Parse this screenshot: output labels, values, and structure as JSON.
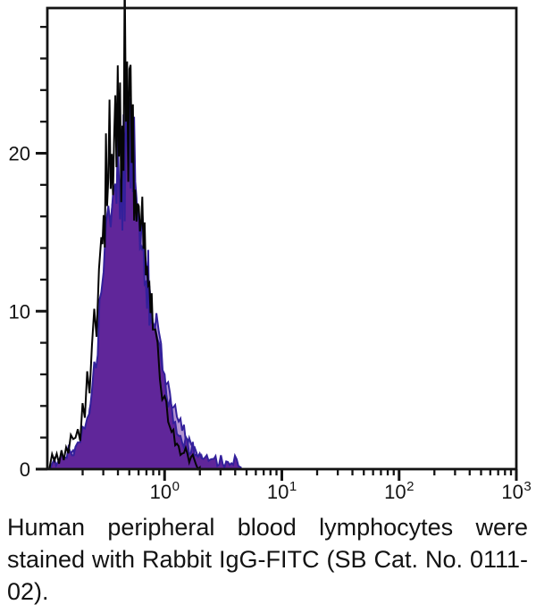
{
  "caption": {
    "text": "Human peripheral blood lymphocytes were stained with Rabbit IgG-FITC (SB Cat. No. 0111-02)."
  },
  "chart_data": {
    "type": "area",
    "subtype": "flow-cytometry-histogram-overlay",
    "title": "",
    "xlabel": "",
    "ylabel": "",
    "grid": false,
    "legend": "none",
    "axis_color": "#141414",
    "x_axis": {
      "scale": "log10",
      "min_exponent": -1,
      "max_exponent": 3,
      "label_base": "10",
      "labeled_exponents": [
        0,
        1,
        2,
        3
      ],
      "minor_ticks_per_decade": [
        2,
        3,
        4,
        5,
        6,
        7,
        8,
        9
      ]
    },
    "y_axis": {
      "min": 0,
      "max": 29.2,
      "major_ticks": [
        0,
        10,
        20
      ],
      "major_tick_labels": [
        "0",
        "10",
        "20"
      ],
      "minor_tick_step": 2,
      "minor_tick_max": 28
    },
    "series": [
      {
        "name": "histogram-light-purple",
        "style": "filled",
        "fill": "#b596d2",
        "stroke": "#33209b",
        "stroke_width": 2,
        "peak_value": 20,
        "points": [
          [
            -0.93,
            0.2
          ],
          [
            -0.88,
            0.6
          ],
          [
            -0.83,
            0.4
          ],
          [
            -0.78,
            1.0
          ],
          [
            -0.73,
            0.8
          ],
          [
            -0.68,
            1.5
          ],
          [
            -0.62,
            4.2
          ],
          [
            -0.58,
            6.5
          ],
          [
            -0.54,
            9.5
          ],
          [
            -0.5,
            12.5
          ],
          [
            -0.46,
            15.0
          ],
          [
            -0.43,
            16.5
          ],
          [
            -0.4,
            17.5
          ],
          [
            -0.37,
            18.5
          ],
          [
            -0.34,
            19.5
          ],
          [
            -0.31,
            20.0
          ],
          [
            -0.28,
            19.0
          ],
          [
            -0.25,
            17.5
          ],
          [
            -0.22,
            16.5
          ],
          [
            -0.19,
            14.5
          ],
          [
            -0.16,
            13.0
          ],
          [
            -0.13,
            11.5
          ],
          [
            -0.11,
            10.5
          ],
          [
            -0.09,
            9.5
          ],
          [
            -0.07,
            8.6
          ],
          [
            -0.05,
            7.8
          ],
          [
            -0.03,
            7.0
          ],
          [
            -0.01,
            6.3
          ],
          [
            0.01,
            5.7
          ],
          [
            0.03,
            5.1
          ],
          [
            0.06,
            4.4
          ],
          [
            0.09,
            3.7
          ],
          [
            0.12,
            3.1
          ],
          [
            0.15,
            2.6
          ],
          [
            0.18,
            2.1
          ],
          [
            0.21,
            1.7
          ],
          [
            0.24,
            1.4
          ],
          [
            0.27,
            1.1
          ],
          [
            0.3,
            0.8
          ],
          [
            0.33,
            0.6
          ],
          [
            0.36,
            0.4
          ],
          [
            0.4,
            0.2
          ]
        ]
      },
      {
        "name": "histogram-dark-purple",
        "style": "filled",
        "fill": "#60269a",
        "stroke": "#33209b",
        "stroke_width": 2,
        "peak_value": 22,
        "points": [
          [
            -0.97,
            0.1
          ],
          [
            -0.94,
            0.6
          ],
          [
            -0.91,
            0.3
          ],
          [
            -0.88,
            0.9
          ],
          [
            -0.85,
            0.5
          ],
          [
            -0.82,
            1.1
          ],
          [
            -0.79,
            0.7
          ],
          [
            -0.76,
            1.2
          ],
          [
            -0.72,
            1.9
          ],
          [
            -0.68,
            2.8
          ],
          [
            -0.64,
            3.9
          ],
          [
            -0.6,
            6.5
          ],
          [
            -0.57,
            8.5
          ],
          [
            -0.54,
            11.5
          ],
          [
            -0.52,
            13.0
          ],
          [
            -0.5,
            15.5
          ],
          [
            -0.48,
            17.5
          ],
          [
            -0.46,
            16.0
          ],
          [
            -0.44,
            18.5
          ],
          [
            -0.42,
            17.0
          ],
          [
            -0.41,
            19.5
          ],
          [
            -0.4,
            18.5
          ],
          [
            -0.38,
            15.5
          ],
          [
            -0.37,
            19.5
          ],
          [
            -0.36,
            17.0
          ],
          [
            -0.35,
            20.5
          ],
          [
            -0.34,
            18.0
          ],
          [
            -0.33,
            21.0
          ],
          [
            -0.31,
            18.5
          ],
          [
            -0.3,
            22.0
          ],
          [
            -0.29,
            19.0
          ],
          [
            -0.28,
            21.5
          ],
          [
            -0.27,
            18.0
          ],
          [
            -0.26,
            20.0
          ],
          [
            -0.25,
            16.5
          ],
          [
            -0.24,
            18.5
          ],
          [
            -0.23,
            15.5
          ],
          [
            -0.22,
            17.5
          ],
          [
            -0.21,
            14.5
          ],
          [
            -0.2,
            16.0
          ],
          [
            -0.19,
            13.5
          ],
          [
            -0.18,
            15.0
          ],
          [
            -0.17,
            12.5
          ],
          [
            -0.16,
            13.5
          ],
          [
            -0.15,
            11.5
          ],
          [
            -0.14,
            12.5
          ],
          [
            -0.13,
            10.5
          ],
          [
            -0.12,
            11.5
          ],
          [
            -0.11,
            9.5
          ],
          [
            -0.1,
            10.5
          ],
          [
            -0.08,
            8.5
          ],
          [
            -0.06,
            7.8
          ],
          [
            -0.04,
            7.0
          ],
          [
            -0.02,
            6.2
          ],
          [
            0.0,
            5.2
          ],
          [
            0.03,
            4.2
          ],
          [
            0.06,
            3.4
          ],
          [
            0.09,
            2.6
          ],
          [
            0.12,
            2.0
          ],
          [
            0.15,
            1.5
          ],
          [
            0.18,
            2.0
          ],
          [
            0.21,
            1.0
          ],
          [
            0.24,
            1.6
          ],
          [
            0.27,
            0.7
          ],
          [
            0.3,
            1.2
          ],
          [
            0.33,
            0.5
          ],
          [
            0.36,
            1.0
          ],
          [
            0.39,
            0.4
          ],
          [
            0.42,
            0.9
          ],
          [
            0.45,
            0.3
          ],
          [
            0.48,
            0.7
          ],
          [
            0.51,
            0.2
          ],
          [
            0.54,
            0.6
          ],
          [
            0.57,
            0.3
          ],
          [
            0.6,
            0.6
          ],
          [
            0.63,
            0.4
          ],
          [
            0.65,
            0.1
          ]
        ]
      },
      {
        "name": "histogram-black-open",
        "style": "open",
        "fill": "none",
        "stroke": "#050505",
        "stroke_width": 2,
        "peak_value": 27.8,
        "points": [
          [
            -0.98,
            0.2
          ],
          [
            -0.96,
            1.0
          ],
          [
            -0.94,
            0.4
          ],
          [
            -0.92,
            1.2
          ],
          [
            -0.9,
            0.5
          ],
          [
            -0.88,
            1.5
          ],
          [
            -0.86,
            0.7
          ],
          [
            -0.84,
            1.3
          ],
          [
            -0.82,
            0.8
          ],
          [
            -0.8,
            1.8
          ],
          [
            -0.78,
            2.3
          ],
          [
            -0.76,
            1.6
          ],
          [
            -0.74,
            2.8
          ],
          [
            -0.72,
            2.2
          ],
          [
            -0.7,
            4.2
          ],
          [
            -0.68,
            3.4
          ],
          [
            -0.66,
            5.4
          ],
          [
            -0.64,
            4.6
          ],
          [
            -0.62,
            7.2
          ],
          [
            -0.6,
            9.6
          ],
          [
            -0.58,
            8.2
          ],
          [
            -0.56,
            12.0
          ],
          [
            -0.54,
            14.5
          ],
          [
            -0.53,
            12.5
          ],
          [
            -0.52,
            16.0
          ],
          [
            -0.51,
            13.5
          ],
          [
            -0.5,
            19.0
          ],
          [
            -0.49,
            16.0
          ],
          [
            -0.48,
            21.0
          ],
          [
            -0.47,
            24.7
          ],
          [
            -0.46,
            18.0
          ],
          [
            -0.45,
            20.5
          ],
          [
            -0.44,
            17.0
          ],
          [
            -0.43,
            22.0
          ],
          [
            -0.42,
            25.8
          ],
          [
            -0.41,
            19.0
          ],
          [
            -0.4,
            22.5
          ],
          [
            -0.39,
            18.5
          ],
          [
            -0.38,
            23.5
          ],
          [
            -0.37,
            19.5
          ],
          [
            -0.36,
            21.5
          ],
          [
            -0.35,
            20.0
          ],
          [
            -0.34,
            27.8
          ],
          [
            -0.33,
            21.5
          ],
          [
            -0.32,
            24.0
          ],
          [
            -0.31,
            20.5
          ],
          [
            -0.3,
            25.0
          ],
          [
            -0.29,
            23.0
          ],
          [
            -0.28,
            19.5
          ],
          [
            -0.27,
            21.5
          ],
          [
            -0.26,
            17.5
          ],
          [
            -0.25,
            19.5
          ],
          [
            -0.24,
            16.0
          ],
          [
            -0.23,
            18.0
          ],
          [
            -0.22,
            15.0
          ],
          [
            -0.21,
            16.5
          ],
          [
            -0.2,
            14.0
          ],
          [
            -0.19,
            15.5
          ],
          [
            -0.18,
            13.0
          ],
          [
            -0.17,
            14.0
          ],
          [
            -0.16,
            12.0
          ],
          [
            -0.15,
            13.0
          ],
          [
            -0.14,
            11.0
          ],
          [
            -0.13,
            12.0
          ],
          [
            -0.12,
            10.0
          ],
          [
            -0.11,
            10.8
          ],
          [
            -0.1,
            9.2
          ],
          [
            -0.08,
            8.0
          ],
          [
            -0.06,
            7.0
          ],
          [
            -0.04,
            6.2
          ],
          [
            -0.02,
            5.2
          ],
          [
            0.0,
            4.2
          ],
          [
            0.03,
            3.2
          ],
          [
            0.06,
            2.5
          ],
          [
            0.09,
            1.8
          ],
          [
            0.12,
            1.3
          ],
          [
            0.15,
            0.9
          ],
          [
            0.18,
            1.2
          ],
          [
            0.21,
            0.5
          ],
          [
            0.24,
            0.8
          ],
          [
            0.27,
            0.3
          ],
          [
            0.3,
            0.1
          ]
        ]
      }
    ]
  }
}
